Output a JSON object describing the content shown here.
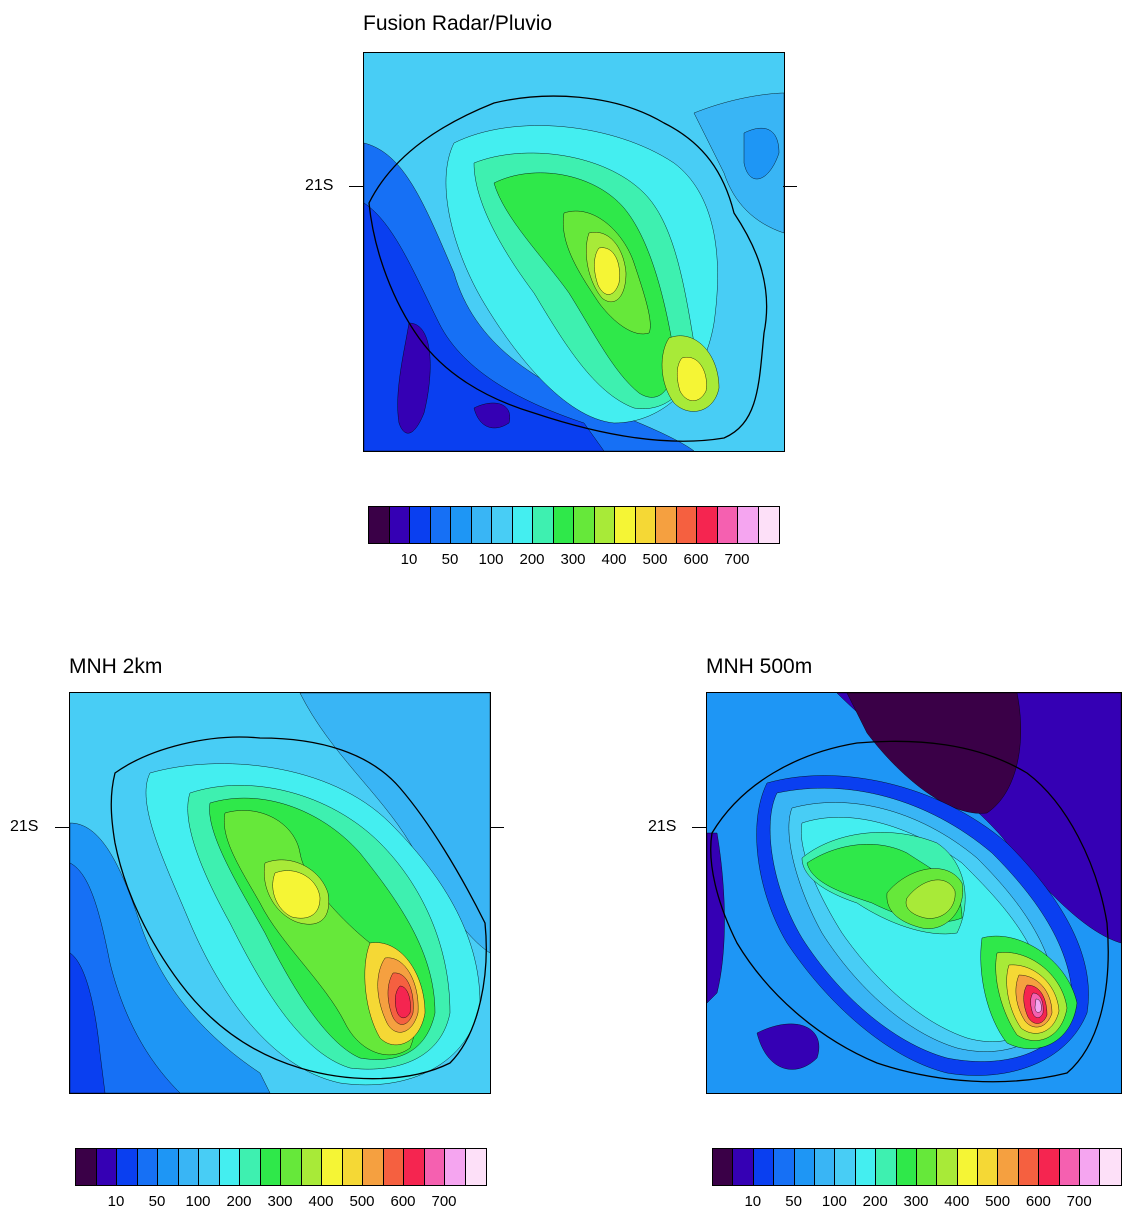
{
  "panels": [
    {
      "id": "fusion",
      "title": "Fusion Radar/Pluvio",
      "lat_label": "21S"
    },
    {
      "id": "mnh2km",
      "title": "MNH 2km",
      "lat_label": "21S"
    },
    {
      "id": "mnh500m",
      "title": "MNH 500m",
      "lat_label": "21S"
    }
  ],
  "colorbar": {
    "colors": [
      "#3a0047",
      "#3500b4",
      "#0a3ff0",
      "#1670f5",
      "#1e96f5",
      "#39b5f5",
      "#48cdf5",
      "#44eef0",
      "#3ef0b0",
      "#2fe84a",
      "#66e83a",
      "#a8ea38",
      "#f5f535",
      "#f5d835",
      "#f5a040",
      "#f56040",
      "#f52550",
      "#f560b0",
      "#f5a5f0",
      "#fde0f8"
    ],
    "labels": [
      "10",
      "50",
      "100",
      "200",
      "300",
      "400",
      "500",
      "600",
      "700"
    ]
  }
}
